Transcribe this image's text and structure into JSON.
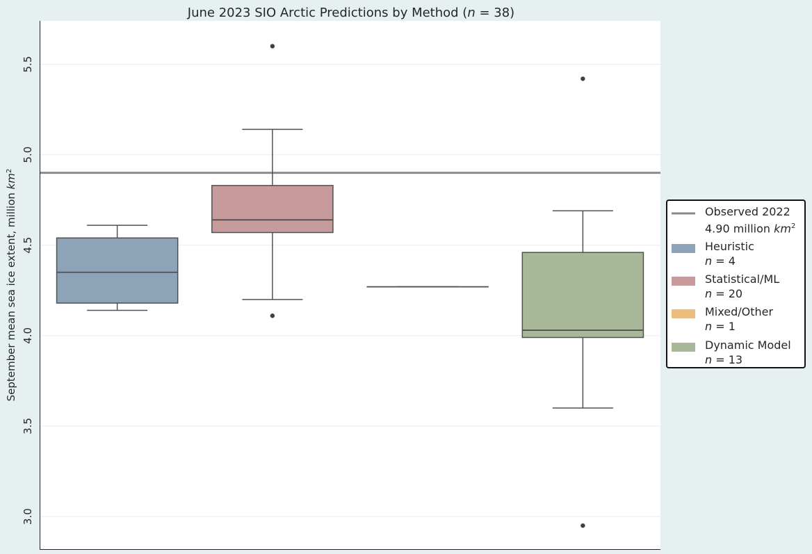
{
  "chart_data": {
    "type": "box",
    "title_prefix": "June 2023 SIO Arctic Predictions by Method (",
    "title_n": "n",
    "title_suffix": " = 38)",
    "ylabel_prefix": "September mean sea ice extent, million ",
    "ylabel_unit": "km",
    "ylabel_exp": "2",
    "ylim": [
      2.82,
      5.74
    ],
    "yticks": [
      "3.0",
      "3.5",
      "4.0",
      "4.5",
      "5.0",
      "5.5"
    ],
    "grid": true,
    "reference_line": {
      "value": 4.9,
      "color": "#8a8a8a"
    },
    "groups": [
      {
        "name": "Heuristic",
        "color": "#8ca3b8",
        "whisker_low": 4.14,
        "q1": 4.18,
        "median": 4.35,
        "q3": 4.54,
        "whisker_high": 4.61,
        "outliers": []
      },
      {
        "name": "Statistical/ML",
        "color": "#c79a9c",
        "whisker_low": 4.2,
        "q1": 4.57,
        "median": 4.64,
        "q3": 4.83,
        "whisker_high": 5.14,
        "outliers": [
          5.6,
          4.11
        ]
      },
      {
        "name": "Mixed/Other",
        "color": "#edbd7c",
        "whisker_low": 4.27,
        "q1": 4.27,
        "median": 4.27,
        "q3": 4.27,
        "whisker_high": 4.27,
        "outliers": []
      },
      {
        "name": "Dynamic Model",
        "color": "#a9b898",
        "whisker_low": 3.6,
        "q1": 3.99,
        "median": 4.03,
        "q3": 4.46,
        "whisker_high": 4.69,
        "outliers": [
          5.42,
          2.95
        ]
      }
    ],
    "legend": {
      "placement": "right",
      "items": [
        {
          "label": "Observed 2022",
          "sub_value": "4.90 million ",
          "sub_unit": "km",
          "sub_exp": "2",
          "color": "#8a8a8a",
          "kind": "line"
        },
        {
          "label": "Heuristic",
          "sub_n": "n",
          "sub_rest": " = 4",
          "color": "#8ca3b8",
          "kind": "patch"
        },
        {
          "label": "Statistical/ML",
          "sub_n": "n",
          "sub_rest": " = 20",
          "color": "#c79a9c",
          "kind": "patch"
        },
        {
          "label": "Mixed/Other",
          "sub_n": "n",
          "sub_rest": " = 1",
          "color": "#edbd7c",
          "kind": "patch"
        },
        {
          "label": "Dynamic Model",
          "sub_n": "n",
          "sub_rest": " = 13",
          "color": "#a9b898",
          "kind": "patch"
        }
      ]
    }
  }
}
